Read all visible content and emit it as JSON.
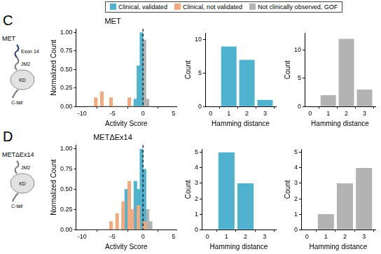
{
  "figure_legend": [
    {
      "name": "Clinical, validated",
      "color": "#4fb3cf"
    },
    {
      "name": "Clinical, not validated",
      "color": "#f2a97d"
    },
    {
      "name": "Not clinically observed, GOF",
      "color": "#b3b3b3"
    }
  ],
  "panels": [
    {
      "label": "C",
      "protein": "MET",
      "domains": [
        "Exon 14",
        "JM2",
        "KD",
        "C-tail"
      ]
    },
    {
      "label": "D",
      "protein": "METΔEx14",
      "domains": [
        "JM2",
        "KD",
        "C-tail"
      ]
    }
  ],
  "chart_data": [
    {
      "type": "histogram",
      "title": "MET",
      "x_label": "Activity Score",
      "y_label": "Normalized Count",
      "bins": [
        -9,
        -8.5,
        -8,
        -7.5,
        -7,
        -6.5,
        -6,
        -5.5,
        -5,
        -4.5,
        -4,
        -3.5,
        -3,
        -2.5,
        -2,
        -1.5,
        -1,
        -0.5,
        0,
        0.5,
        1,
        1.5
      ],
      "series": [
        {
          "name": "Clinical, not validated",
          "color": "#f2a97d",
          "values": [
            0,
            0,
            0.12,
            0,
            0.2,
            0,
            0,
            0.12,
            0,
            0,
            0,
            0,
            0,
            0.12,
            0,
            0,
            0,
            0,
            0,
            0,
            0
          ]
        },
        {
          "name": "Clinical, validated",
          "color": "#4fb3cf",
          "values": [
            0,
            0,
            0,
            0,
            0,
            0,
            0,
            0,
            0,
            0,
            0,
            0,
            0,
            0,
            0,
            0.1,
            0.55,
            1,
            0,
            0,
            0
          ]
        },
        {
          "name": "Not clinically observed, GOF",
          "color": "#b3b3b3",
          "values": [
            0,
            0,
            0,
            0,
            0,
            0,
            0,
            0,
            0,
            0,
            0,
            0,
            0,
            0,
            0,
            0,
            0,
            0,
            0.9,
            0.1,
            0
          ]
        }
      ],
      "reference_line_x": 0,
      "xlim": [
        -11,
        5.5
      ],
      "xticks": [
        -10,
        -5,
        0,
        5
      ],
      "ylim": [
        0,
        1.05
      ],
      "yticks": [
        {
          "value": 0,
          "label": "0.00"
        },
        0.25,
        {
          "value": 0.5,
          "label": "0.50"
        },
        0.75,
        {
          "value": 1,
          "label": "1.00"
        }
      ],
      "grid": false
    },
    {
      "type": "bar",
      "x_label": "Hamming distance",
      "y_label": "Count",
      "x": [
        1,
        2,
        3
      ],
      "series": [
        {
          "name": "Clinical, validated",
          "color": "#4fb3cf",
          "values": [
            9,
            7,
            1
          ]
        }
      ],
      "xlim": [
        -0.3,
        3.6
      ],
      "xticks": [
        0,
        1,
        2,
        3
      ],
      "ylim": [
        0,
        11
      ],
      "yticks": [
        0,
        5,
        10
      ],
      "grid": false
    },
    {
      "type": "bar",
      "x_label": "Hamming distance",
      "y_label": "Count",
      "x": [
        1,
        2,
        3
      ],
      "series": [
        {
          "name": "Not clinically observed, GOF",
          "color": "#b3b3b3",
          "values": [
            2,
            12,
            3
          ]
        }
      ],
      "xlim": [
        -0.3,
        3.6
      ],
      "xticks": [
        0,
        1,
        2,
        3
      ],
      "ylim": [
        0,
        13
      ],
      "yticks": [
        0,
        5,
        10
      ],
      "grid": false
    },
    {
      "type": "histogram",
      "title": "METΔEx14",
      "x_label": "Activity Score",
      "y_label": "Normalized Count",
      "bins": [
        -9,
        -8.5,
        -8,
        -7.5,
        -7,
        -6.5,
        -6,
        -5.5,
        -5,
        -4.5,
        -4,
        -3.5,
        -3,
        -2.5,
        -2,
        -1.5,
        -1,
        -0.5,
        0,
        0.5,
        1,
        1.5
      ],
      "series": [
        {
          "name": "Clinical, not validated",
          "color": "#f2a97d",
          "values": [
            0,
            0,
            0,
            0,
            0,
            0,
            0,
            0.1,
            0,
            0.2,
            0,
            0.35,
            0,
            0.6,
            0.25,
            0,
            0.3,
            0,
            0.1,
            0,
            0
          ]
        },
        {
          "name": "Clinical, validated",
          "color": "#4fb3cf",
          "values": [
            0,
            0,
            0,
            0,
            0,
            0,
            0,
            0,
            0,
            0,
            0,
            0.25,
            0.5,
            0,
            0,
            0.6,
            0.5,
            1,
            0.75,
            0,
            0
          ]
        },
        {
          "name": "Not clinically observed, GOF",
          "color": "#b3b3b3",
          "values": [
            0,
            0,
            0,
            0,
            0,
            0,
            0,
            0,
            0,
            0,
            0,
            0,
            0,
            0,
            0,
            0,
            0,
            0,
            0,
            0.25,
            0.1
          ]
        }
      ],
      "reference_line_x": 0,
      "xlim": [
        -11,
        5.5
      ],
      "xticks": [
        -10,
        -5,
        0,
        5
      ],
      "ylim": [
        0,
        1.05
      ],
      "yticks": [
        {
          "value": 0,
          "label": "0.00"
        },
        0.25,
        {
          "value": 0.5,
          "label": "0.50"
        },
        0.75,
        {
          "value": 1,
          "label": "1.00"
        }
      ],
      "grid": false
    },
    {
      "type": "bar",
      "x_label": "Hamming distance",
      "y_label": "Count",
      "x": [
        1,
        2
      ],
      "series": [
        {
          "name": "Clinical, validated",
          "color": "#4fb3cf",
          "values": [
            5,
            3
          ]
        }
      ],
      "xlim": [
        -0.3,
        3.6
      ],
      "xticks": [
        0,
        1,
        2,
        3
      ],
      "ylim": [
        0,
        5.2
      ],
      "yticks": [
        0,
        1,
        2,
        3,
        4,
        5
      ],
      "grid": false
    },
    {
      "type": "bar",
      "x_label": "Hamming distance",
      "y_label": "Count",
      "x": [
        1,
        2,
        3
      ],
      "series": [
        {
          "name": "Not clinically observed, GOF",
          "color": "#b3b3b3",
          "values": [
            1,
            3,
            4
          ]
        }
      ],
      "xlim": [
        -0.3,
        3.6
      ],
      "xticks": [
        0,
        1,
        2,
        3
      ],
      "ylim": [
        0,
        5.2
      ],
      "yticks": [
        0,
        1,
        2,
        3,
        4,
        5
      ],
      "grid": false
    }
  ]
}
